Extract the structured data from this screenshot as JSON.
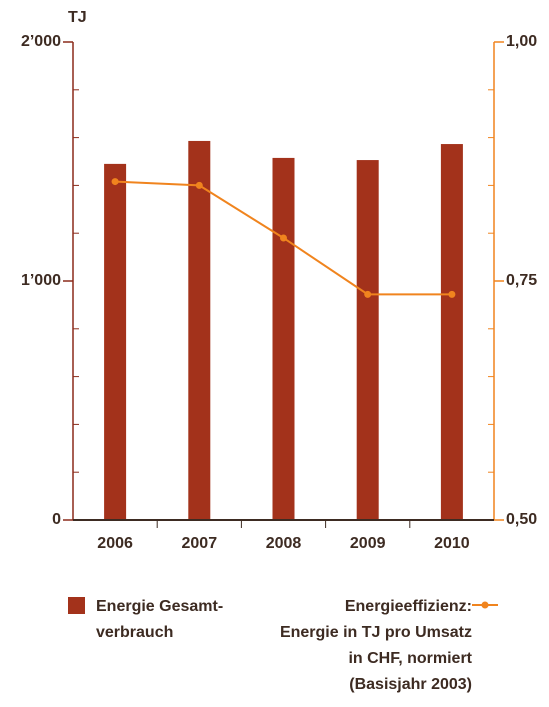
{
  "chart_data": {
    "type": "bar_line",
    "y_label": "TJ",
    "categories": [
      "2006",
      "2007",
      "2008",
      "2009",
      "2010"
    ],
    "series": [
      {
        "name": "Energie Gesamt-\nverbrauch",
        "color": "#a3321b",
        "values": [
          1490,
          1586,
          1515,
          1506,
          1573
        ]
      },
      {
        "name": "Energieeffizienz:\nEnergie in TJ pro Umsatz\nin CHF, normiert\n(Basisjahr 2003)",
        "color": "#f0841e",
        "axis": "y2",
        "values": [
          0.854,
          0.85,
          0.795,
          0.736,
          0.736
        ]
      }
    ],
    "ylim": [
      0,
      2000
    ],
    "yticks": [
      {
        "value": 0,
        "label": "0"
      },
      {
        "value": 1000,
        "label": "1’000"
      },
      {
        "value": 2000,
        "label": "2’000"
      }
    ],
    "yticks_minor": [
      200,
      400,
      600,
      800,
      1200,
      1400,
      1600,
      1800
    ],
    "y2lim": [
      0.5,
      1.0
    ],
    "y2ticks": [
      {
        "value": 0.5,
        "label": "0,50"
      },
      {
        "value": 0.75,
        "label": "0,75"
      },
      {
        "value": 1.0,
        "label": "1,00"
      }
    ],
    "y2ticks_minor": [
      0.55,
      0.6,
      0.65,
      0.7,
      0.8,
      0.85,
      0.9,
      0.95
    ]
  }
}
